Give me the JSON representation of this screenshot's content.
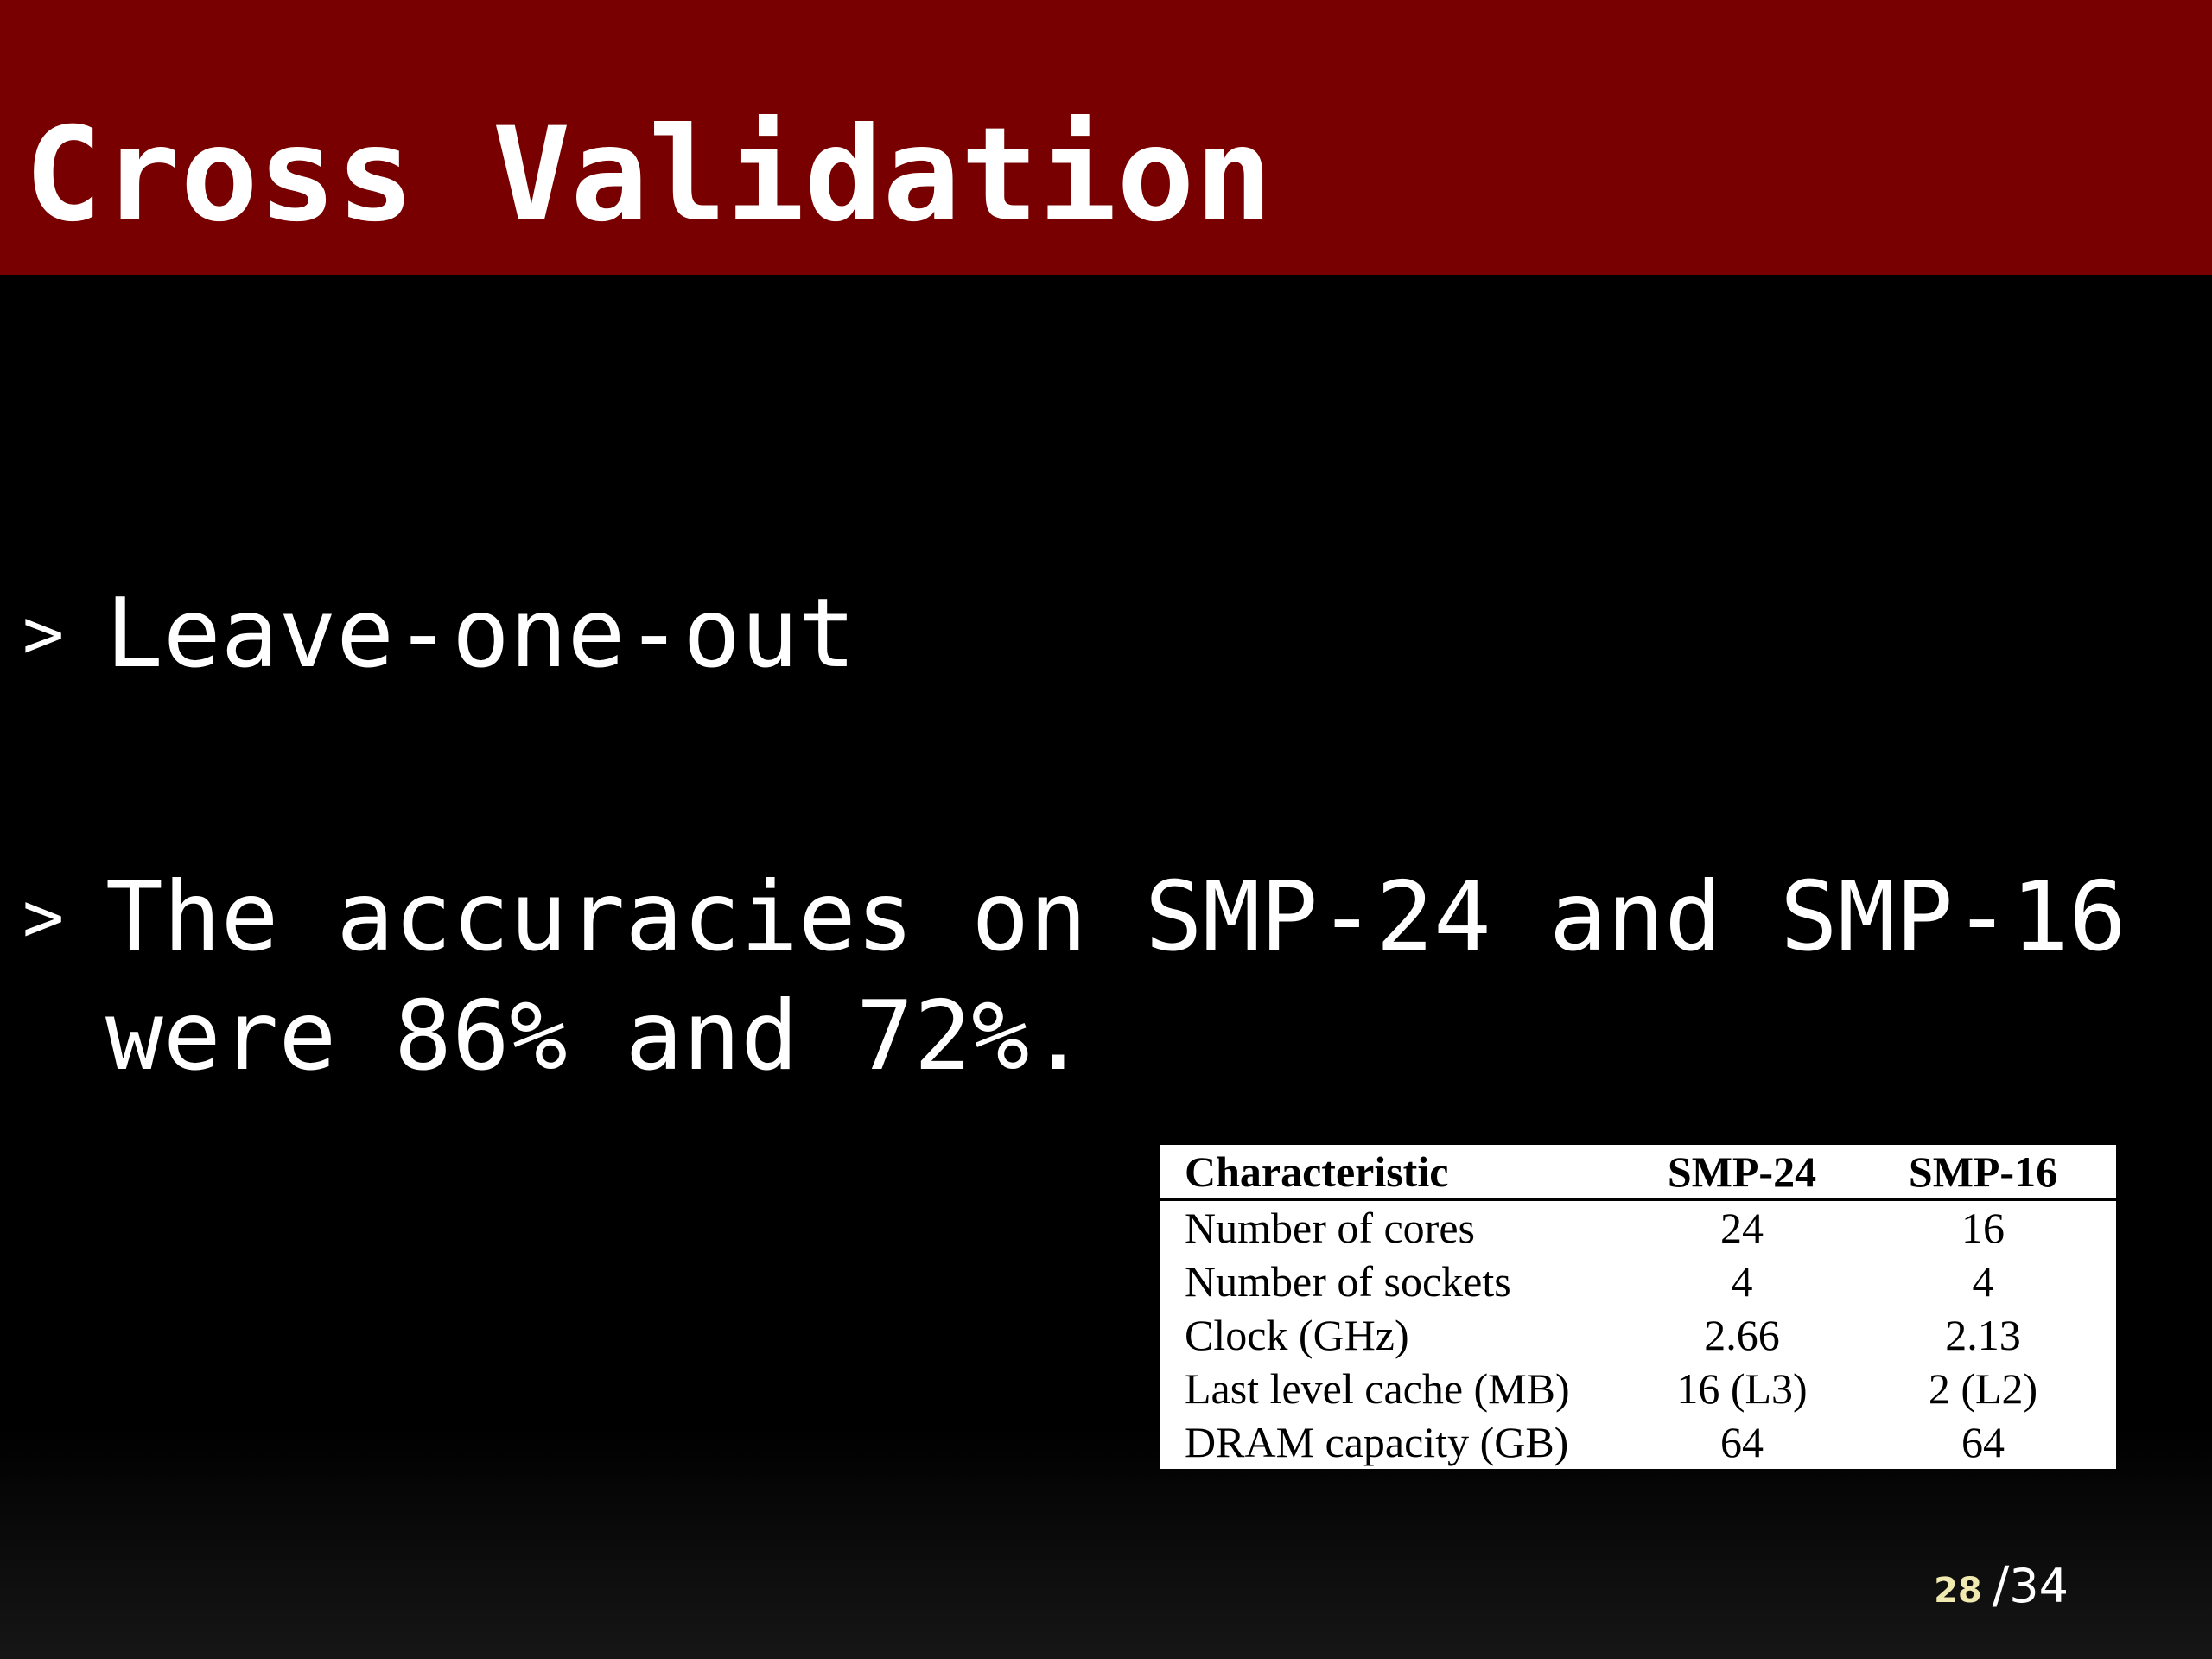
{
  "slide": {
    "title": "Cross Validation",
    "bullets": [
      {
        "marker": ">",
        "text": "Leave-one-out"
      },
      {
        "marker": ">",
        "text": "The accuracies on SMP-24 and SMP-16 were 86% and 72%."
      }
    ]
  },
  "table": {
    "headers": [
      "Characteristic",
      "SMP-24",
      "SMP-16"
    ],
    "rows": [
      [
        "Number of cores",
        "24",
        "16"
      ],
      [
        "Number of sockets",
        "4",
        "4"
      ],
      [
        "Clock (GHz)",
        "2.66",
        "2.13"
      ],
      [
        "Last level cache (MB)",
        "16 (L3)",
        "2 (L2)"
      ],
      [
        "DRAM capacity (GB)",
        "64",
        "64"
      ]
    ]
  },
  "page": {
    "current": "28",
    "separator": "/",
    "total": "34"
  },
  "colors": {
    "title_bar": "#780000",
    "background": "#000000",
    "text": "#ffffff",
    "page_current": "#f0eab0"
  }
}
